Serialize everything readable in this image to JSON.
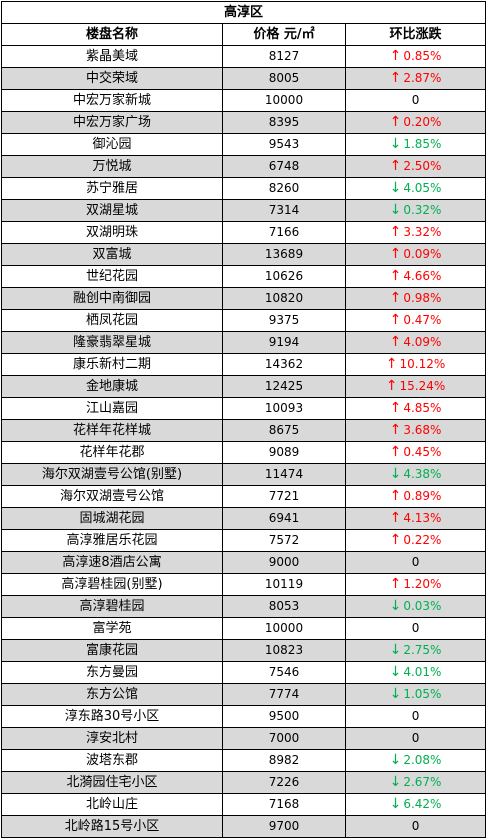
{
  "district": "高淳区",
  "columns": {
    "name": "楼盘名称",
    "price": "价格 元/㎡",
    "change": "环比涨跌"
  },
  "colors": {
    "up": "#ff0000",
    "down": "#00b050",
    "shade": "#d9d9d9"
  },
  "rows": [
    {
      "name": "紫晶美域",
      "price": "8127",
      "dir": "up",
      "change": "0.85%"
    },
    {
      "name": "中交荣域",
      "price": "8005",
      "dir": "up",
      "change": "2.87%"
    },
    {
      "name": "中宏万家新城",
      "price": "10000",
      "dir": "flat",
      "change": "0"
    },
    {
      "name": "中宏万家广场",
      "price": "8395",
      "dir": "up",
      "change": "0.20%"
    },
    {
      "name": "御沁园",
      "price": "9543",
      "dir": "down",
      "change": "1.85%"
    },
    {
      "name": "万悦城",
      "price": "6748",
      "dir": "up",
      "change": "2.50%"
    },
    {
      "name": "苏宁雅居",
      "price": "8260",
      "dir": "down",
      "change": "4.05%"
    },
    {
      "name": "双湖星城",
      "price": "7314",
      "dir": "down",
      "change": "0.32%"
    },
    {
      "name": "双湖明珠",
      "price": "7166",
      "dir": "up",
      "change": "3.32%"
    },
    {
      "name": "双富城",
      "price": "13689",
      "dir": "up",
      "change": "0.09%"
    },
    {
      "name": "世纪花园",
      "price": "10626",
      "dir": "up",
      "change": "4.66%"
    },
    {
      "name": "融创中南御园",
      "price": "10820",
      "dir": "up",
      "change": "0.98%"
    },
    {
      "name": "栖凤花园",
      "price": "9375",
      "dir": "up",
      "change": "0.47%"
    },
    {
      "name": "隆豪翡翠星城",
      "price": "9194",
      "dir": "up",
      "change": "4.09%"
    },
    {
      "name": "康乐新村二期",
      "price": "14362",
      "dir": "up",
      "change": "10.12%"
    },
    {
      "name": "金地康城",
      "price": "12425",
      "dir": "up",
      "change": "15.24%"
    },
    {
      "name": "江山嘉园",
      "price": "10093",
      "dir": "up",
      "change": "4.85%"
    },
    {
      "name": "花样年花样城",
      "price": "8675",
      "dir": "up",
      "change": "3.68%"
    },
    {
      "name": "花样年花郡",
      "price": "9089",
      "dir": "up",
      "change": "0.45%"
    },
    {
      "name": "海尔双湖壹号公馆(别墅)",
      "price": "11474",
      "dir": "down",
      "change": "4.38%"
    },
    {
      "name": "海尔双湖壹号公馆",
      "price": "7721",
      "dir": "up",
      "change": "0.89%"
    },
    {
      "name": "固城湖花园",
      "price": "6941",
      "dir": "up",
      "change": "4.13%"
    },
    {
      "name": "高淳雅居乐花园",
      "price": "7572",
      "dir": "up",
      "change": "0.22%"
    },
    {
      "name": "高淳速8酒店公寓",
      "price": "9000",
      "dir": "flat",
      "change": "0"
    },
    {
      "name": "高淳碧桂园(别墅)",
      "price": "10119",
      "dir": "up",
      "change": "1.20%"
    },
    {
      "name": "高淳碧桂园",
      "price": "8053",
      "dir": "down",
      "change": "0.03%"
    },
    {
      "name": "富学苑",
      "price": "10000",
      "dir": "flat",
      "change": "0"
    },
    {
      "name": "富康花园",
      "price": "10823",
      "dir": "down",
      "change": "2.75%"
    },
    {
      "name": "东方曼园",
      "price": "7546",
      "dir": "down",
      "change": "4.01%"
    },
    {
      "name": "东方公馆",
      "price": "7774",
      "dir": "down",
      "change": "1.05%"
    },
    {
      "name": "淳东路30号小区",
      "price": "9500",
      "dir": "flat",
      "change": "0"
    },
    {
      "name": "淳安北村",
      "price": "7000",
      "dir": "flat",
      "change": "0"
    },
    {
      "name": "波塔东郡",
      "price": "8982",
      "dir": "down",
      "change": "2.08%"
    },
    {
      "name": "北漪园住宅小区",
      "price": "7226",
      "dir": "down",
      "change": "2.67%"
    },
    {
      "name": "北岭山庄",
      "price": "7168",
      "dir": "down",
      "change": "6.42%"
    },
    {
      "name": "北岭路15号小区",
      "price": "9700",
      "dir": "flat",
      "change": "0"
    }
  ]
}
